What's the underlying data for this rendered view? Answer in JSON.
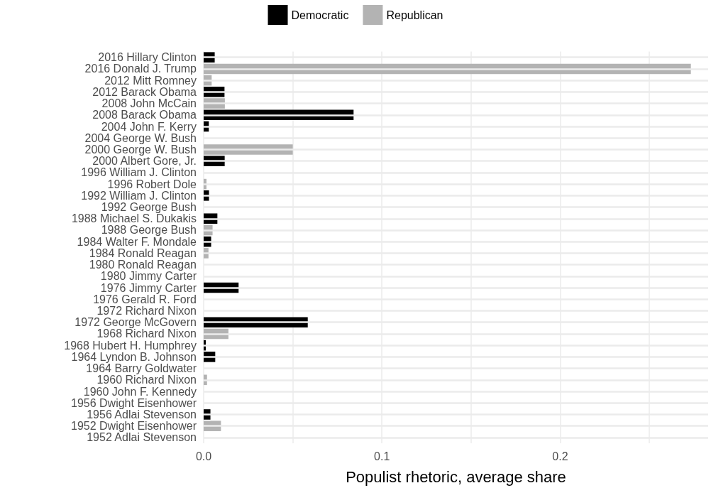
{
  "chart_data": {
    "type": "bar",
    "orientation": "horizontal",
    "xlabel": "Populist rhetoric, average share",
    "categories": [
      "2016 Hillary Clinton",
      "2016 Donald J. Trump",
      "2012 Mitt Romney",
      "2012 Barack Obama",
      "2008 John McCain",
      "2008 Barack Obama",
      "2004 John F. Kerry",
      "2004 George W. Bush",
      "2000 George W. Bush",
      "2000 Albert Gore, Jr.",
      "1996 William J. Clinton",
      "1996 Robert Dole",
      "1992 William J. Clinton",
      "1992 George Bush",
      "1988 Michael S. Dukakis",
      "1988 George Bush",
      "1984 Walter F. Mondale",
      "1984 Ronald Reagan",
      "1980 Ronald Reagan",
      "1980 Jimmy Carter",
      "1976 Jimmy Carter",
      "1976 Gerald R. Ford",
      "1972 Richard Nixon",
      "1972 George McGovern",
      "1968 Richard Nixon",
      "1968 Hubert H. Humphrey",
      "1964 Lyndon B. Johnson",
      "1964 Barry Goldwater",
      "1960 Richard Nixon",
      "1960 John F. Kennedy",
      "1956 Dwight Eisenhower",
      "1956 Adlai Stevenson",
      "1952 Dwight Eisenhower",
      "1952 Adlai Stevenson"
    ],
    "series": [
      {
        "name": "Democratic",
        "color": "#000000",
        "values": [
          0.0062,
          null,
          null,
          0.0117,
          null,
          0.0841,
          0.0029,
          null,
          null,
          0.0118,
          0,
          null,
          0.003,
          null,
          0.0077,
          null,
          0.0042,
          null,
          null,
          0,
          0.0196,
          null,
          null,
          0.0584,
          null,
          0.0012,
          0.0065,
          null,
          null,
          0,
          null,
          0.0038,
          null,
          0
        ]
      },
      {
        "name": "Republican",
        "color": "#b3b3b3",
        "values": [
          null,
          0.2733,
          0.0045,
          null,
          0.0119,
          null,
          null,
          0,
          0.05,
          null,
          null,
          0.0016,
          null,
          0,
          null,
          0.005,
          null,
          0.0027,
          0,
          null,
          null,
          0,
          0,
          null,
          0.0139,
          null,
          null,
          0,
          0.0019,
          null,
          0,
          null,
          0.0097,
          null
        ]
      }
    ],
    "xlim": [
      0,
      0.283
    ],
    "xticks": [
      {
        "value": 0,
        "label": "0.0"
      },
      {
        "value": 0.05,
        "label": null
      },
      {
        "value": 0.1,
        "label": "0.1"
      },
      {
        "value": 0.15,
        "label": null
      },
      {
        "value": 0.2,
        "label": "0.2"
      },
      {
        "value": 0.25,
        "label": null
      }
    ],
    "grid": true,
    "legend": "top"
  }
}
